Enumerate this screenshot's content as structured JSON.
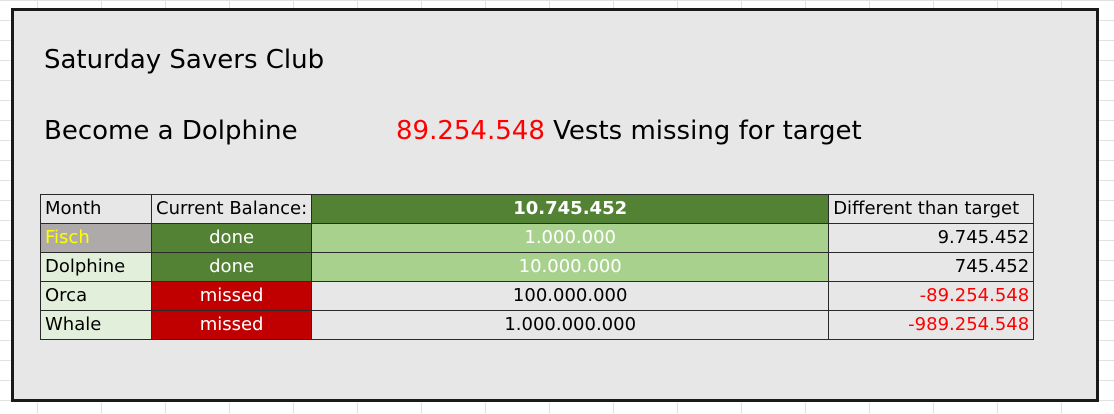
{
  "header": {
    "club_title": "Saturday Savers Club",
    "goal": "Become a Dolphine",
    "missing_amount": "89.254.548",
    "missing_text": "Vests missing for target"
  },
  "table": {
    "header_row": {
      "month": "Month",
      "current_balance_label": "Current Balance:",
      "current_balance_value": "10.745.452",
      "difference_label": "Different than target"
    },
    "rows": [
      {
        "name": "Fisch",
        "status": "done",
        "target": "1.000.000",
        "difference": "9.745.452"
      },
      {
        "name": "Dolphine",
        "status": "done",
        "target": "10.000.000",
        "difference": "745.452"
      },
      {
        "name": "Orca",
        "status": "missed",
        "target": "100.000.000",
        "difference": "-89.254.548"
      },
      {
        "name": "Whale",
        "status": "missed",
        "target": "1.000.000.000",
        "difference": "-989.254.548"
      }
    ]
  },
  "colors": {
    "done": "#548235",
    "reached_target": "#a9d18e",
    "missed": "#c00000",
    "negative_value": "#ff0000",
    "highlight_name": "#ffff00"
  }
}
